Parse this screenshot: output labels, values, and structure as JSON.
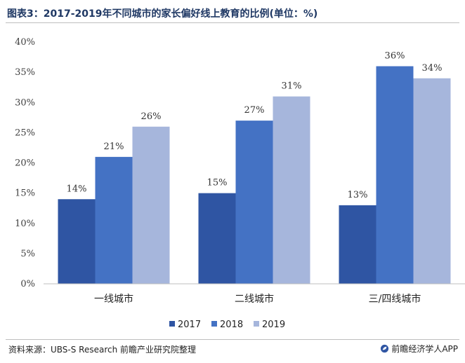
{
  "header": {
    "title": "图表3：2017-2019年不同城市的家长偏好线上教育的比例(单位：%)"
  },
  "footer": {
    "source": "资料来源：UBS-S Research 前瞻产业研究院整理",
    "brand": "前瞻经济学人APP",
    "brand_icon": "leaf-logo-icon"
  },
  "chart_data": {
    "type": "bar",
    "categories": [
      "一线城市",
      "二线城市",
      "三/四线城市"
    ],
    "series": [
      {
        "name": "2017",
        "values": [
          14,
          15,
          13
        ],
        "color": "#2f55a3"
      },
      {
        "name": "2018",
        "values": [
          21,
          27,
          36
        ],
        "color": "#4472c4"
      },
      {
        "name": "2019",
        "values": [
          26,
          31,
          34
        ],
        "color": "#a6b6dc"
      }
    ],
    "value_suffix": "%",
    "ylim": [
      0,
      40
    ],
    "yticks": [
      0,
      5,
      10,
      15,
      20,
      25,
      30,
      35,
      40
    ],
    "ytick_suffix": "%",
    "grid": false,
    "legend": "bottom-center",
    "xlabel": "",
    "ylabel": ""
  }
}
